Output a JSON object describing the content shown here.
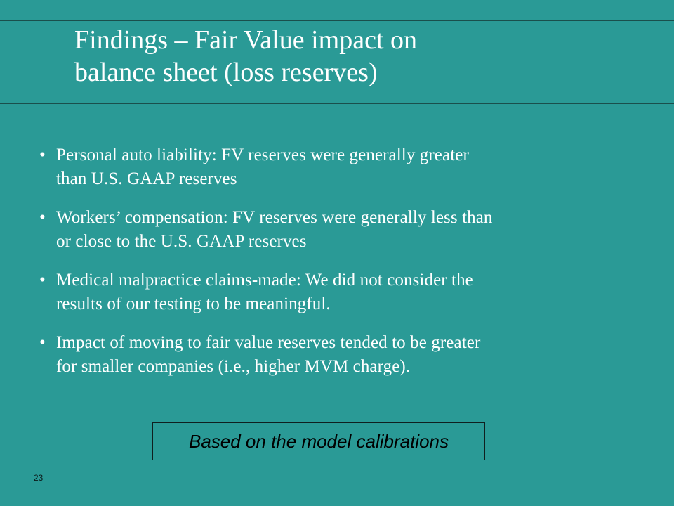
{
  "slide": {
    "title_lines": [
      "Findings – Fair Value impact on",
      "balance sheet (loss reserves)"
    ],
    "bullet_mark": "•",
    "bullets": [
      {
        "line1": "Personal auto liability:  FV reserves were generally greater",
        "line2": "than U.S. GAAP reserves"
      },
      {
        "line1": "Workers’ compensation:  FV reserves were generally less than",
        "line2": "or close to the U.S. GAAP reserves"
      },
      {
        "line1": "Medical malpractice claims-made:   We did not consider the",
        "line2": "results of our testing to be meaningful."
      },
      {
        "line1": "Impact of moving to fair value reserves tended to be greater",
        "line2": "for smaller companies (i.e., higher MVM charge)."
      }
    ],
    "note": "Based on the model calibrations",
    "page_number": "23"
  },
  "colors": {
    "background": "#2a9a96",
    "text": "#ffffff",
    "rule": "#1a4f4c",
    "note_text": "#000000"
  }
}
